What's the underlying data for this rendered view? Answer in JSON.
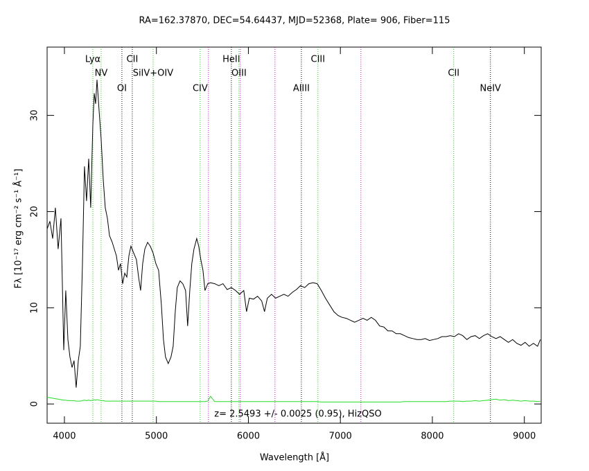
{
  "chart_data": {
    "type": "line",
    "title": "RA=162.37870, DEC=54.64437, MJD=52368, Plate= 906, Fiber=115",
    "x_label": "Wavelength [Å]",
    "y_label": "Fλ [10⁻¹⁷ erg cm⁻² s⁻¹ Å⁻¹]",
    "annotation": "z= 2.5493 +/- 0.0025 (0.95), HizQSO",
    "xlim": [
      3812,
      9183
    ],
    "ylim": [
      -2.0,
      37.1
    ],
    "xticks": [
      4000,
      5000,
      6000,
      7000,
      8000,
      9000
    ],
    "yticks": [
      0,
      10,
      20,
      30
    ],
    "x": [
      3812,
      3842,
      3872,
      3902,
      3932,
      3963,
      3993,
      4015,
      4038,
      4060,
      4083,
      4105,
      4128,
      4151,
      4173,
      4196,
      4218,
      4241,
      4264,
      4286,
      4309,
      4324,
      4339,
      4354,
      4377,
      4399,
      4422,
      4444,
      4467,
      4490,
      4520,
      4543,
      4565,
      4588,
      4610,
      4633,
      4656,
      4678,
      4701,
      4723,
      4753,
      4783,
      4806,
      4828,
      4851,
      4874,
      4904,
      4934,
      4964,
      4994,
      5024,
      5054,
      5077,
      5099,
      5129,
      5159,
      5182,
      5205,
      5227,
      5257,
      5287,
      5317,
      5340,
      5363,
      5385,
      5408,
      5438,
      5460,
      5483,
      5506,
      5528,
      5558,
      5588,
      5634,
      5679,
      5724,
      5769,
      5815,
      5860,
      5905,
      5950,
      5980,
      6010,
      6055,
      6100,
      6145,
      6175,
      6206,
      6251,
      6296,
      6341,
      6386,
      6431,
      6477,
      6522,
      6567,
      6612,
      6657,
      6703,
      6748,
      6793,
      6838,
      6883,
      6929,
      6974,
      7019,
      7065,
      7110,
      7155,
      7200,
      7246,
      7291,
      7336,
      7381,
      7427,
      7472,
      7517,
      7562,
      7607,
      7652,
      7697,
      7743,
      7788,
      7833,
      7878,
      7923,
      7969,
      8014,
      8059,
      8104,
      8149,
      8195,
      8240,
      8285,
      8330,
      8375,
      8421,
      8466,
      8511,
      8556,
      8601,
      8647,
      8692,
      8737,
      8782,
      8827,
      8873,
      8918,
      8963,
      9008,
      9053,
      9099,
      9144,
      9174
    ],
    "series": [
      {
        "color": "#000000",
        "values": [
          18.2,
          19.0,
          17.2,
          20.4,
          16.1,
          19.3,
          5.6,
          11.8,
          6.7,
          4.9,
          3.8,
          4.5,
          1.7,
          4.5,
          6.0,
          14.6,
          24.7,
          21.1,
          25.5,
          20.4,
          29.1,
          32.3,
          31.2,
          33.7,
          30.5,
          27.6,
          23.3,
          20.4,
          19.3,
          17.5,
          16.8,
          16.1,
          15.4,
          13.9,
          14.6,
          12.5,
          13.6,
          13.2,
          15.4,
          16.4,
          15.7,
          15.0,
          13.2,
          11.8,
          14.6,
          16.1,
          16.8,
          16.4,
          15.7,
          14.6,
          13.9,
          10.3,
          6.7,
          4.9,
          4.2,
          4.9,
          6.0,
          9.6,
          12.1,
          12.8,
          12.5,
          11.8,
          8.1,
          11.8,
          14.6,
          16.1,
          17.2,
          16.4,
          15.0,
          13.9,
          11.8,
          12.5,
          12.6,
          12.5,
          12.3,
          12.5,
          11.9,
          12.1,
          11.8,
          11.4,
          11.8,
          9.6,
          11.0,
          10.9,
          11.2,
          10.7,
          9.6,
          11.0,
          11.4,
          11.0,
          11.2,
          11.4,
          11.2,
          11.6,
          11.9,
          12.3,
          12.1,
          12.5,
          12.6,
          12.5,
          11.8,
          11.0,
          10.3,
          9.6,
          9.2,
          9.0,
          8.9,
          8.7,
          8.5,
          8.7,
          8.9,
          8.7,
          9.0,
          8.7,
          8.1,
          8.0,
          7.6,
          7.6,
          7.3,
          7.3,
          7.1,
          6.9,
          6.8,
          6.7,
          6.7,
          6.8,
          6.6,
          6.7,
          6.8,
          7.0,
          7.0,
          7.1,
          7.0,
          7.3,
          7.1,
          6.7,
          7.0,
          7.1,
          6.8,
          7.1,
          7.3,
          7.0,
          6.8,
          7.0,
          6.7,
          6.4,
          6.7,
          6.3,
          6.1,
          6.4,
          6.0,
          6.3,
          6.0,
          6.7
        ]
      },
      {
        "color": "#22dd22",
        "values": [
          0.7,
          0.65,
          0.6,
          0.55,
          0.5,
          0.45,
          0.4,
          0.4,
          0.35,
          0.35,
          0.35,
          0.35,
          0.3,
          0.3,
          0.3,
          0.35,
          0.4,
          0.35,
          0.4,
          0.35,
          0.4,
          0.45,
          0.4,
          0.45,
          0.4,
          0.35,
          0.35,
          0.3,
          0.3,
          0.3,
          0.3,
          0.3,
          0.3,
          0.3,
          0.3,
          0.3,
          0.3,
          0.3,
          0.3,
          0.3,
          0.3,
          0.3,
          0.3,
          0.3,
          0.3,
          0.3,
          0.3,
          0.3,
          0.3,
          0.3,
          0.25,
          0.25,
          0.25,
          0.25,
          0.25,
          0.25,
          0.25,
          0.25,
          0.25,
          0.25,
          0.25,
          0.25,
          0.25,
          0.25,
          0.25,
          0.25,
          0.25,
          0.25,
          0.25,
          0.25,
          0.25,
          0.3,
          0.8,
          0.25,
          0.25,
          0.25,
          0.25,
          0.25,
          0.25,
          0.25,
          0.25,
          0.25,
          0.25,
          0.25,
          0.25,
          0.25,
          0.25,
          0.25,
          0.25,
          0.25,
          0.25,
          0.25,
          0.25,
          0.25,
          0.25,
          0.25,
          0.25,
          0.25,
          0.25,
          0.25,
          0.2,
          0.2,
          0.2,
          0.2,
          0.2,
          0.2,
          0.2,
          0.2,
          0.2,
          0.2,
          0.2,
          0.2,
          0.2,
          0.2,
          0.2,
          0.2,
          0.2,
          0.2,
          0.2,
          0.2,
          0.25,
          0.25,
          0.25,
          0.25,
          0.25,
          0.25,
          0.25,
          0.25,
          0.25,
          0.25,
          0.25,
          0.3,
          0.3,
          0.3,
          0.25,
          0.3,
          0.3,
          0.35,
          0.3,
          0.35,
          0.4,
          0.45,
          0.5,
          0.4,
          0.45,
          0.35,
          0.4,
          0.35,
          0.3,
          0.35,
          0.3,
          0.3,
          0.25,
          0.3
        ]
      }
    ],
    "lines": [
      {
        "name": "Lyα",
        "x": 4309,
        "color": "#22cc22"
      },
      {
        "name": "NV",
        "x": 4399,
        "color": "#22cc22"
      },
      {
        "name": "OI",
        "x": 4625,
        "color": "#000000"
      },
      {
        "name": "CII",
        "x": 4738,
        "color": "#000000"
      },
      {
        "name": "SiIV+OIV",
        "x": 4964,
        "color": "#22cc22"
      },
      {
        "name": "CIV",
        "x": 5476,
        "color": "#22cc22"
      },
      {
        "x": 5566,
        "color": "#cc00cc"
      },
      {
        "name": "HeII",
        "x": 5815,
        "color": "#000000"
      },
      {
        "name": "OIII",
        "x": 5898,
        "color": "#22cc22"
      },
      {
        "x": 5913,
        "color": "#cc00cc"
      },
      {
        "x": 6289,
        "color": "#cc00cc"
      },
      {
        "name": "AlIII",
        "x": 6576,
        "color": "#000000"
      },
      {
        "name": "CIII",
        "x": 6756,
        "color": "#22cc22"
      },
      {
        "x": 7223,
        "color": "#cc00cc"
      },
      {
        "name": "CII",
        "x": 8232,
        "color": "#22cc22"
      },
      {
        "name": "NeIV",
        "x": 8631,
        "color": "#000000"
      }
    ]
  }
}
